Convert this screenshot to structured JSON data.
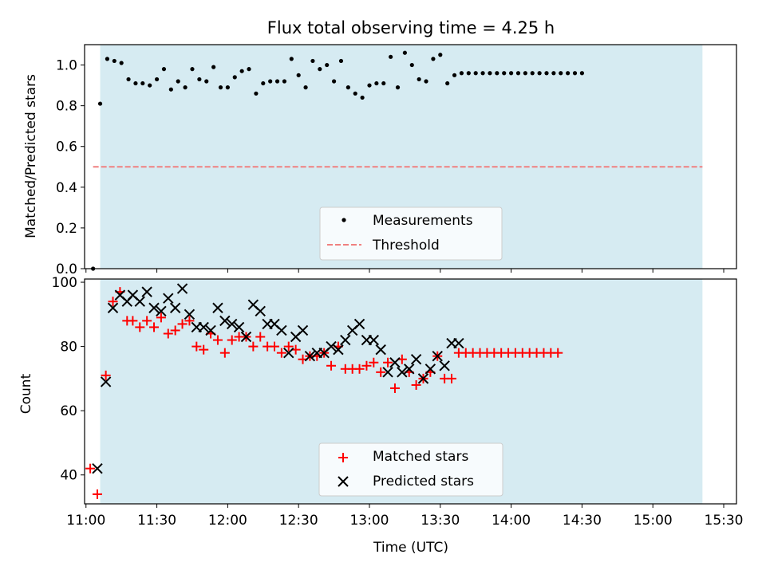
{
  "chart_data": [
    {
      "type": "scatter",
      "title": "Flux total observing time = 4.25 h",
      "xlabel": "",
      "ylabel": "Matched/Predicted stars",
      "xlim_hours": [
        10.99,
        15.59
      ],
      "ylim": [
        0.0,
        1.1
      ],
      "yticks": [
        0.0,
        0.2,
        0.4,
        0.6,
        0.8,
        1.0
      ],
      "ytick_labels": [
        "0.0",
        "0.2",
        "0.4",
        "0.6",
        "0.8",
        "1.0"
      ],
      "shaded_span_hours": [
        11.1,
        15.35
      ],
      "legend": {
        "placement": "lower-center",
        "entries": [
          "Measurements",
          "Threshold"
        ]
      },
      "threshold": {
        "name": "Threshold",
        "value": 0.5,
        "x_range_hours": [
          11.05,
          15.35
        ],
        "color": "#f08080"
      },
      "series": [
        {
          "name": "Measurements",
          "color": "#000000",
          "x_hours": [
            11.05,
            11.1,
            11.15,
            11.2,
            11.25,
            11.3,
            11.35,
            11.4,
            11.45,
            11.5,
            11.55,
            11.6,
            11.65,
            11.7,
            11.75,
            11.8,
            11.85,
            11.9,
            11.95,
            12.0,
            12.05,
            12.1,
            12.15,
            12.2,
            12.25,
            12.3,
            12.35,
            12.4,
            12.45,
            12.5,
            12.55,
            12.6,
            12.65,
            12.7,
            12.75,
            12.8,
            12.85,
            12.9,
            12.95,
            13.0,
            13.05,
            13.1,
            13.15,
            13.2,
            13.25,
            13.3,
            13.35,
            13.4,
            13.45,
            13.5,
            13.55,
            13.6,
            13.65,
            13.7,
            13.75,
            13.8,
            13.85,
            13.9,
            13.95,
            14.0,
            14.05,
            14.1,
            14.15,
            14.2,
            14.25,
            14.3,
            14.35,
            14.4,
            14.45,
            14.5
          ],
          "values": [
            0.0,
            0.81,
            1.03,
            1.02,
            1.01,
            0.93,
            0.91,
            0.91,
            0.9,
            0.93,
            0.98,
            0.88,
            0.92,
            0.89,
            0.98,
            0.93,
            0.92,
            0.99,
            0.89,
            0.89,
            0.94,
            0.97,
            0.98,
            0.86,
            0.91,
            0.92,
            0.92,
            0.92,
            1.03,
            0.95,
            0.89,
            1.02,
            0.98,
            1.0,
            0.92,
            1.02,
            0.89,
            0.86,
            0.84,
            0.9,
            0.91,
            0.91,
            1.04,
            0.89,
            1.06,
            1.0,
            0.93,
            0.92,
            1.03,
            1.05,
            0.91,
            0.95,
            0.96,
            0.96,
            0.96,
            0.96,
            0.96,
            0.96,
            0.96,
            0.96,
            0.96,
            0.96,
            0.96,
            0.96,
            0.96,
            0.96,
            0.96,
            0.96,
            0.96,
            0.96
          ]
        }
      ]
    },
    {
      "type": "scatter",
      "title": "",
      "xlabel": "Time (UTC)",
      "ylabel": "Count",
      "xlim_hours": [
        10.99,
        15.59
      ],
      "ylim": [
        31,
        101
      ],
      "yticks": [
        40,
        60,
        80,
        100
      ],
      "ytick_labels": [
        "40",
        "60",
        "80",
        "100"
      ],
      "xticks_hours": [
        11.0,
        11.5,
        12.0,
        12.5,
        13.0,
        13.5,
        14.0,
        14.5,
        15.0,
        15.5
      ],
      "xtick_labels": [
        "11:00",
        "11:30",
        "12:00",
        "12:30",
        "13:00",
        "13:30",
        "14:00",
        "14:30",
        "15:00",
        "15:30"
      ],
      "shaded_span_hours": [
        11.1,
        15.35
      ],
      "legend": {
        "placement": "lower-center",
        "entries": [
          "Matched stars",
          "Predicted stars"
        ]
      },
      "series": [
        {
          "name": "Matched stars",
          "marker": "plus",
          "color": "#ff0000",
          "x_hours": [
            11.03,
            11.08,
            11.14,
            11.19,
            11.24,
            11.29,
            11.33,
            11.38,
            11.43,
            11.48,
            11.53,
            11.58,
            11.63,
            11.68,
            11.73,
            11.78,
            11.83,
            11.88,
            11.93,
            11.98,
            12.03,
            12.08,
            12.13,
            12.18,
            12.23,
            12.28,
            12.33,
            12.38,
            12.43,
            12.48,
            12.53,
            12.58,
            12.63,
            12.68,
            12.73,
            12.78,
            12.83,
            12.88,
            12.93,
            12.98,
            13.03,
            13.08,
            13.13,
            13.18,
            13.23,
            13.28,
            13.33,
            13.38,
            13.43,
            13.48,
            13.53,
            13.58,
            13.63,
            13.68,
            13.73,
            13.78,
            13.83,
            13.88,
            13.93,
            13.98,
            14.03,
            14.08,
            14.13,
            14.18,
            14.23,
            14.28,
            14.33
          ],
          "values": [
            42,
            34,
            71,
            94,
            97,
            88,
            88,
            86,
            88,
            86,
            89,
            84,
            85,
            87,
            88,
            80,
            79,
            84,
            82,
            78,
            82,
            83,
            83,
            80,
            83,
            80,
            80,
            78,
            80,
            79,
            76,
            77,
            77,
            78,
            74,
            80,
            73,
            73,
            73,
            74,
            75,
            72,
            75,
            67,
            76,
            72,
            68,
            70,
            72,
            77,
            70,
            70,
            78,
            78,
            78,
            78,
            78,
            78,
            78,
            78,
            78,
            78,
            78,
            78,
            78,
            78,
            78
          ]
        },
        {
          "name": "Predicted stars",
          "marker": "x",
          "color": "#000000",
          "x_hours": [
            11.08,
            11.14,
            11.19,
            11.24,
            11.29,
            11.33,
            11.38,
            11.43,
            11.48,
            11.53,
            11.58,
            11.63,
            11.68,
            11.73,
            11.78,
            11.83,
            11.88,
            11.93,
            11.98,
            12.03,
            12.08,
            12.13,
            12.18,
            12.23,
            12.28,
            12.33,
            12.38,
            12.43,
            12.48,
            12.53,
            12.58,
            12.63,
            12.68,
            12.73,
            12.78,
            12.83,
            12.88,
            12.93,
            12.98,
            13.03,
            13.08,
            13.13,
            13.18,
            13.23,
            13.28,
            13.33,
            13.38,
            13.43,
            13.48,
            13.53,
            13.58,
            13.63
          ],
          "values": [
            42,
            69,
            92,
            96,
            94,
            96,
            94,
            97,
            92,
            91,
            95,
            92,
            98,
            90,
            86,
            86,
            85,
            92,
            88,
            87,
            86,
            83,
            93,
            91,
            87,
            87,
            85,
            78,
            83,
            85,
            77,
            78,
            78,
            80,
            79,
            82,
            85,
            87,
            82,
            82,
            79,
            72,
            75,
            72,
            73,
            76,
            70,
            73,
            77,
            74,
            81,
            81
          ]
        }
      ]
    }
  ]
}
